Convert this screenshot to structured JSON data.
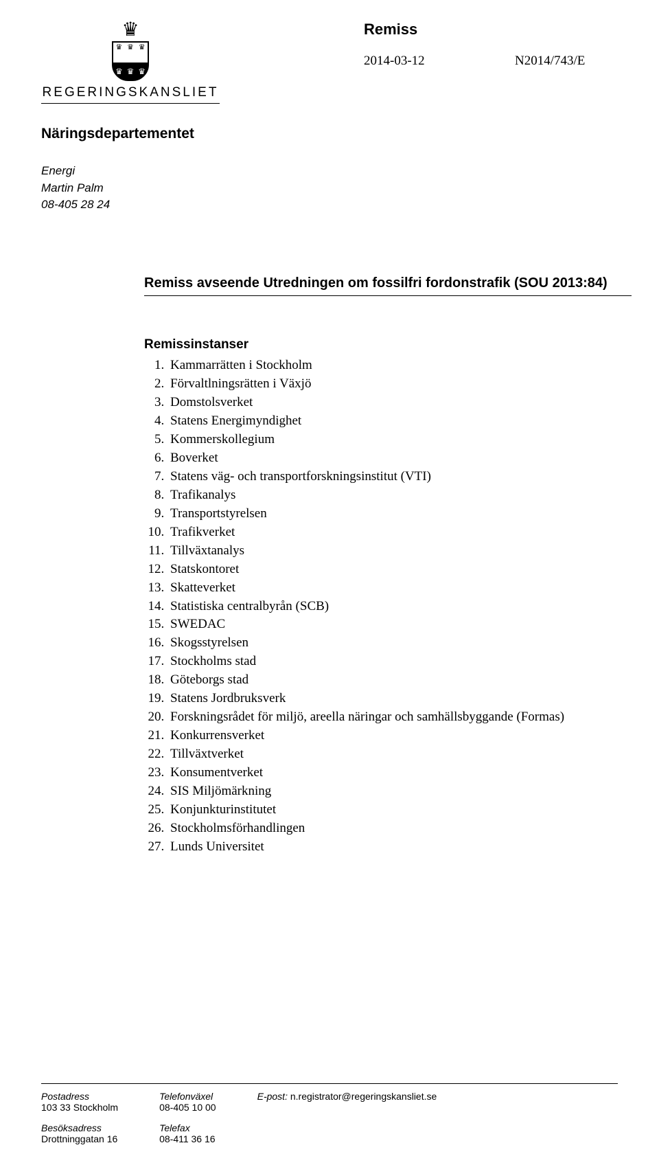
{
  "brand": "REGERINGSKANSLIET",
  "doc_type": "Remiss",
  "date": "2014-03-12",
  "reference": "N2014/743/E",
  "department": "Näringsdepartementet",
  "contact": {
    "unit": "Energi",
    "person": "Martin Palm",
    "phone": "08-405 28 24"
  },
  "subject": "Remiss avseende Utredningen om fossilfri fordonstrafik (SOU 2013:84)",
  "list_title": "Remissinstanser",
  "items": [
    "Kammarrätten i Stockholm",
    "Förvaltlningsrätten i Växjö",
    "Domstolsverket",
    "Statens Energimyndighet",
    "Kommerskollegium",
    "Boverket",
    "Statens väg- och transportforskningsinstitut (VTI)",
    "Trafikanalys",
    "Transportstyrelsen",
    "Trafikverket",
    "Tillväxtanalys",
    "Statskontoret",
    "Skatteverket",
    "Statistiska centralbyrån (SCB)",
    "SWEDAC",
    "Skogsstyrelsen",
    "Stockholms stad",
    "Göteborgs stad",
    "Statens Jordbruksverk",
    "Forskningsrådet för miljö, areella näringar och samhällsbyggande (Formas)",
    "Konkurrensverket",
    "Tillväxtverket",
    "Konsumentverket",
    "SIS Miljömärkning",
    "Konjunkturinstitutet",
    "Stockholmsförhandlingen",
    "Lunds Universitet"
  ],
  "footer": {
    "post_label": "Postadress",
    "post_value": "103 33 Stockholm",
    "visit_label": "Besöksadress",
    "visit_value": "Drottninggatan 16",
    "phone_label": "Telefonväxel",
    "phone_value": "08-405 10 00",
    "fax_label": "Telefax",
    "fax_value": "08-411 36 16",
    "email_label": "E-post:",
    "email_value": "n.registrator@regeringskansliet.se"
  }
}
